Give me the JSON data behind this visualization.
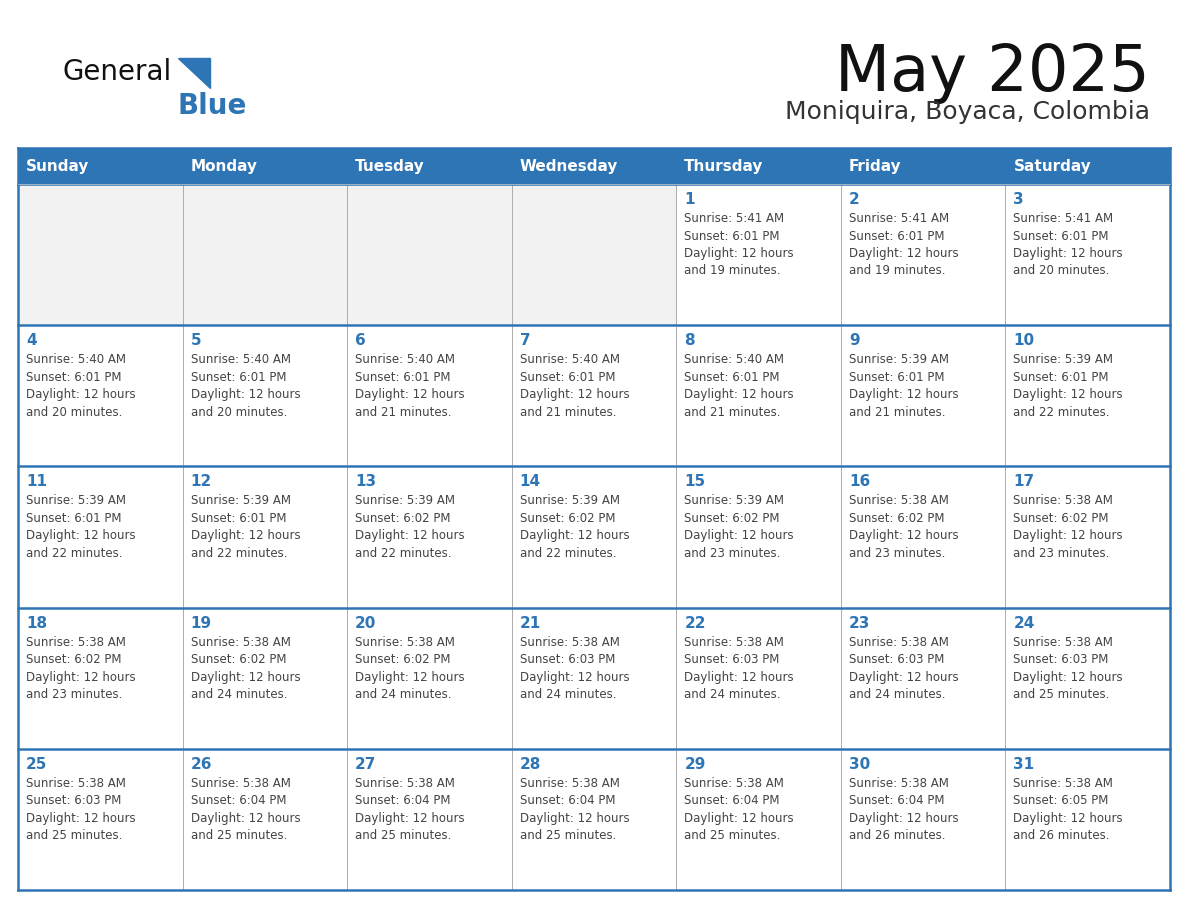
{
  "title": "May 2025",
  "subtitle": "Moniquira, Boyaca, Colombia",
  "header_bg": "#2E75B6",
  "header_text_color": "#FFFFFF",
  "cell_bg_white": "#FFFFFF",
  "cell_bg_gray": "#F2F2F2",
  "border_color": "#2E75B6",
  "row_border_color": "#4472A8",
  "col_border_color": "#AAAAAA",
  "text_color": "#333333",
  "day_num_color": "#2E75B6",
  "day_headers": [
    "Sunday",
    "Monday",
    "Tuesday",
    "Wednesday",
    "Thursday",
    "Friday",
    "Saturday"
  ],
  "logo_general_color": "#111111",
  "logo_blue_color": "#2E75B6",
  "calendar_data": [
    [
      {
        "day": "",
        "info": ""
      },
      {
        "day": "",
        "info": ""
      },
      {
        "day": "",
        "info": ""
      },
      {
        "day": "",
        "info": ""
      },
      {
        "day": "1",
        "info": "Sunrise: 5:41 AM\nSunset: 6:01 PM\nDaylight: 12 hours\nand 19 minutes."
      },
      {
        "day": "2",
        "info": "Sunrise: 5:41 AM\nSunset: 6:01 PM\nDaylight: 12 hours\nand 19 minutes."
      },
      {
        "day": "3",
        "info": "Sunrise: 5:41 AM\nSunset: 6:01 PM\nDaylight: 12 hours\nand 20 minutes."
      }
    ],
    [
      {
        "day": "4",
        "info": "Sunrise: 5:40 AM\nSunset: 6:01 PM\nDaylight: 12 hours\nand 20 minutes."
      },
      {
        "day": "5",
        "info": "Sunrise: 5:40 AM\nSunset: 6:01 PM\nDaylight: 12 hours\nand 20 minutes."
      },
      {
        "day": "6",
        "info": "Sunrise: 5:40 AM\nSunset: 6:01 PM\nDaylight: 12 hours\nand 21 minutes."
      },
      {
        "day": "7",
        "info": "Sunrise: 5:40 AM\nSunset: 6:01 PM\nDaylight: 12 hours\nand 21 minutes."
      },
      {
        "day": "8",
        "info": "Sunrise: 5:40 AM\nSunset: 6:01 PM\nDaylight: 12 hours\nand 21 minutes."
      },
      {
        "day": "9",
        "info": "Sunrise: 5:39 AM\nSunset: 6:01 PM\nDaylight: 12 hours\nand 21 minutes."
      },
      {
        "day": "10",
        "info": "Sunrise: 5:39 AM\nSunset: 6:01 PM\nDaylight: 12 hours\nand 22 minutes."
      }
    ],
    [
      {
        "day": "11",
        "info": "Sunrise: 5:39 AM\nSunset: 6:01 PM\nDaylight: 12 hours\nand 22 minutes."
      },
      {
        "day": "12",
        "info": "Sunrise: 5:39 AM\nSunset: 6:01 PM\nDaylight: 12 hours\nand 22 minutes."
      },
      {
        "day": "13",
        "info": "Sunrise: 5:39 AM\nSunset: 6:02 PM\nDaylight: 12 hours\nand 22 minutes."
      },
      {
        "day": "14",
        "info": "Sunrise: 5:39 AM\nSunset: 6:02 PM\nDaylight: 12 hours\nand 22 minutes."
      },
      {
        "day": "15",
        "info": "Sunrise: 5:39 AM\nSunset: 6:02 PM\nDaylight: 12 hours\nand 23 minutes."
      },
      {
        "day": "16",
        "info": "Sunrise: 5:38 AM\nSunset: 6:02 PM\nDaylight: 12 hours\nand 23 minutes."
      },
      {
        "day": "17",
        "info": "Sunrise: 5:38 AM\nSunset: 6:02 PM\nDaylight: 12 hours\nand 23 minutes."
      }
    ],
    [
      {
        "day": "18",
        "info": "Sunrise: 5:38 AM\nSunset: 6:02 PM\nDaylight: 12 hours\nand 23 minutes."
      },
      {
        "day": "19",
        "info": "Sunrise: 5:38 AM\nSunset: 6:02 PM\nDaylight: 12 hours\nand 24 minutes."
      },
      {
        "day": "20",
        "info": "Sunrise: 5:38 AM\nSunset: 6:02 PM\nDaylight: 12 hours\nand 24 minutes."
      },
      {
        "day": "21",
        "info": "Sunrise: 5:38 AM\nSunset: 6:03 PM\nDaylight: 12 hours\nand 24 minutes."
      },
      {
        "day": "22",
        "info": "Sunrise: 5:38 AM\nSunset: 6:03 PM\nDaylight: 12 hours\nand 24 minutes."
      },
      {
        "day": "23",
        "info": "Sunrise: 5:38 AM\nSunset: 6:03 PM\nDaylight: 12 hours\nand 24 minutes."
      },
      {
        "day": "24",
        "info": "Sunrise: 5:38 AM\nSunset: 6:03 PM\nDaylight: 12 hours\nand 25 minutes."
      }
    ],
    [
      {
        "day": "25",
        "info": "Sunrise: 5:38 AM\nSunset: 6:03 PM\nDaylight: 12 hours\nand 25 minutes."
      },
      {
        "day": "26",
        "info": "Sunrise: 5:38 AM\nSunset: 6:04 PM\nDaylight: 12 hours\nand 25 minutes."
      },
      {
        "day": "27",
        "info": "Sunrise: 5:38 AM\nSunset: 6:04 PM\nDaylight: 12 hours\nand 25 minutes."
      },
      {
        "day": "28",
        "info": "Sunrise: 5:38 AM\nSunset: 6:04 PM\nDaylight: 12 hours\nand 25 minutes."
      },
      {
        "day": "29",
        "info": "Sunrise: 5:38 AM\nSunset: 6:04 PM\nDaylight: 12 hours\nand 25 minutes."
      },
      {
        "day": "30",
        "info": "Sunrise: 5:38 AM\nSunset: 6:04 PM\nDaylight: 12 hours\nand 26 minutes."
      },
      {
        "day": "31",
        "info": "Sunrise: 5:38 AM\nSunset: 6:05 PM\nDaylight: 12 hours\nand 26 minutes."
      }
    ]
  ]
}
